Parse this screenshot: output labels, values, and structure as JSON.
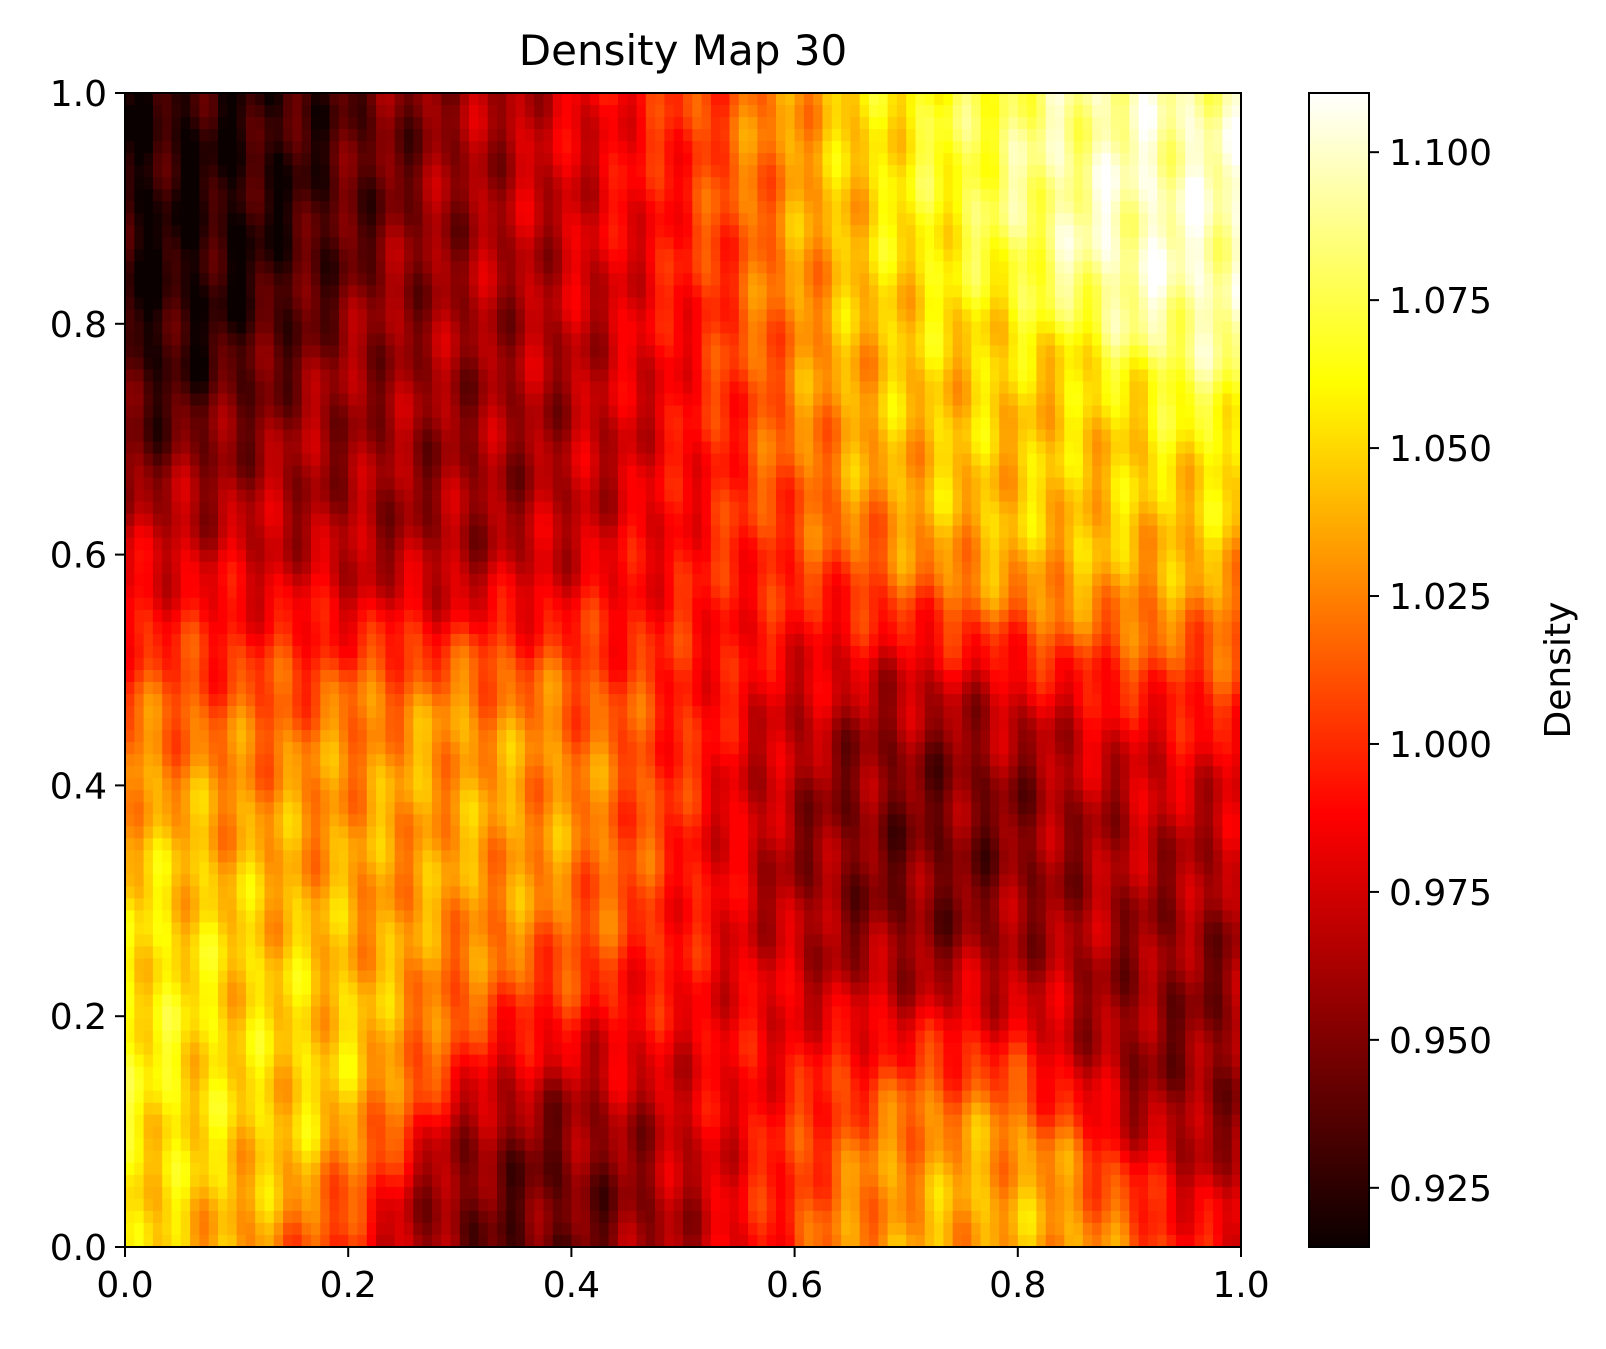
{
  "chart_data": {
    "type": "heatmap",
    "title": "Density Map 30",
    "xlabel": "",
    "ylabel": "",
    "xlim": [
      0.0,
      1.0
    ],
    "ylim": [
      0.0,
      1.0
    ],
    "x_ticks": [
      "0.0",
      "0.2",
      "0.4",
      "0.6",
      "0.8",
      "1.0"
    ],
    "y_ticks": [
      "0.0",
      "0.2",
      "0.4",
      "0.6",
      "0.8",
      "1.0"
    ],
    "colormap": "hot",
    "colorbar": {
      "label": "Density",
      "range": [
        0.915,
        1.11
      ],
      "ticks": [
        "0.925",
        "0.950",
        "0.975",
        "1.000",
        "1.025",
        "1.050",
        "1.075",
        "1.100"
      ]
    },
    "grid": false,
    "approximate_features": [
      {
        "x": 0.03,
        "y": 0.88,
        "value": 0.92
      },
      {
        "x": 0.28,
        "y": 0.68,
        "value": 0.955
      },
      {
        "x": 0.72,
        "y": 0.35,
        "value": 0.945
      },
      {
        "x": 0.95,
        "y": 0.18,
        "value": 0.95
      },
      {
        "x": 0.93,
        "y": 0.87,
        "value": 1.1
      },
      {
        "x": 0.82,
        "y": 0.7,
        "value": 1.045
      },
      {
        "x": 0.3,
        "y": 0.38,
        "value": 1.035
      },
      {
        "x": 0.15,
        "y": 0.16,
        "value": 1.05
      },
      {
        "x": 0.0,
        "y": 0.17,
        "value": 1.06
      },
      {
        "x": 0.35,
        "y": 0.03,
        "value": 0.94
      },
      {
        "x": 0.78,
        "y": 0.03,
        "value": 1.04
      }
    ]
  }
}
